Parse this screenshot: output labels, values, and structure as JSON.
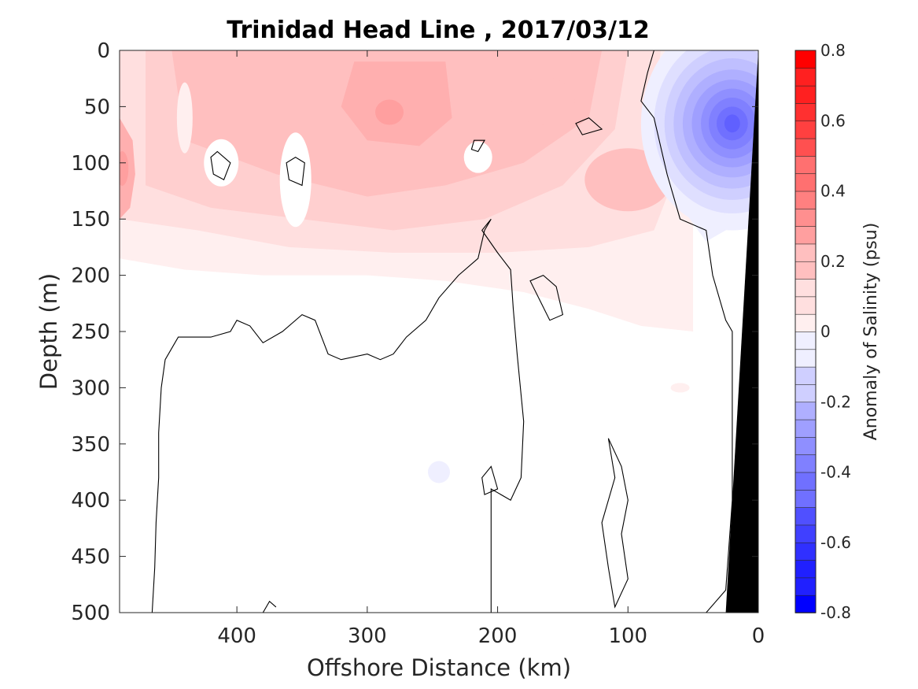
{
  "chart_data": {
    "type": "heatmap",
    "plot_kind": "filled-contour section",
    "title": "Trinidad Head Line , 2017/03/12",
    "xlabel": "Offshore Distance (km)",
    "ylabel": "Depth (m)",
    "colorbar_label": "Anomaly of Salinity (psu)",
    "x_reversed": true,
    "y_reversed": true,
    "xlim": [
      490,
      0
    ],
    "ylim": [
      0,
      500
    ],
    "xticks": [
      400,
      300,
      200,
      100,
      0
    ],
    "xtick_labels": [
      "400",
      "300",
      "200",
      "100",
      "0"
    ],
    "yticks": [
      0,
      50,
      100,
      150,
      200,
      250,
      300,
      350,
      400,
      450,
      500
    ],
    "ytick_labels": [
      "0",
      "50",
      "100",
      "150",
      "200",
      "250",
      "300",
      "350",
      "400",
      "450",
      "500"
    ],
    "colorbar": {
      "range": [
        -0.8,
        0.8
      ],
      "step": 0.05,
      "ticks": [
        -0.8,
        -0.6,
        -0.4,
        -0.2,
        0,
        0.2,
        0.4,
        0.6,
        0.8
      ],
      "tick_labels": [
        "-0.8",
        "-0.6",
        "-0.4",
        "-0.2",
        "0",
        "0.2",
        "0.4",
        "0.6",
        "0.8"
      ],
      "negative_color": "#0000ff",
      "positive_color": "#ff0000",
      "zero_band_color": "#ffffff"
    },
    "features": [
      {
        "name": "positive-anomaly-surface-layer",
        "kind": "positive",
        "x_range": [
          490,
          50
        ],
        "depth_range": [
          0,
          250
        ],
        "peak_anomaly": 0.3
      },
      {
        "name": "max-positive-core-offshore",
        "x": 490,
        "depth": 100,
        "anomaly": 0.3
      },
      {
        "name": "max-positive-core-mid",
        "x": 280,
        "depth": 60,
        "anomaly": 0.3
      },
      {
        "name": "negative-coastal-core",
        "kind": "negative",
        "x": 20,
        "depth": 65,
        "anomaly": -0.5
      },
      {
        "name": "weak-negative-patch",
        "x": 245,
        "depth": 375,
        "anomaly": -0.05
      },
      {
        "name": "weak-positive-patch",
        "x": 60,
        "depth": 300,
        "anomaly": 0.05
      }
    ],
    "zero_contour_depth_profile": {
      "x": [
        465,
        420,
        380,
        350,
        330,
        300,
        280,
        250,
        220,
        200
      ],
      "depth": [
        255,
        240,
        260,
        235,
        275,
        270,
        275,
        240,
        190,
        175
      ]
    },
    "bathymetry": {
      "color": "#000000",
      "x": [
        0,
        25,
        490
      ],
      "seafloor_depth": [
        0,
        500,
        500
      ]
    }
  }
}
